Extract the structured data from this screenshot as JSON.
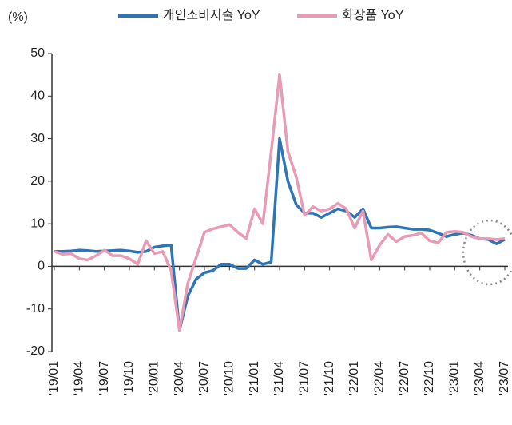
{
  "chart_data": {
    "type": "line",
    "y_unit": "(%)",
    "categories": [
      "'19/01",
      null,
      null,
      "'19/04",
      null,
      null,
      "'19/07",
      null,
      null,
      "'19/10",
      null,
      null,
      "'20/01",
      null,
      null,
      "'20/04",
      null,
      null,
      "'20/07",
      null,
      null,
      "'20/10",
      null,
      null,
      "'21/01",
      null,
      null,
      "'21/04",
      null,
      null,
      "'21/07",
      null,
      null,
      "'21/10",
      null,
      null,
      "'22/01",
      null,
      null,
      "'22/04",
      null,
      null,
      "'22/07",
      null,
      null,
      "'22/10",
      null,
      null,
      "'23/01",
      null,
      null,
      "'23/04",
      null,
      null,
      "'23/07"
    ],
    "series": [
      {
        "name": "개인소비지출 YoY",
        "color": "#2e75b6",
        "values": [
          3.5,
          3.5,
          3.6,
          3.8,
          3.7,
          3.5,
          3.6,
          3.7,
          3.8,
          3.6,
          3.3,
          3.5,
          4.5,
          4.8,
          5.0,
          -15,
          -7,
          -3,
          -1.5,
          -1,
          0.5,
          0.5,
          -0.5,
          -0.5,
          1.5,
          0.5,
          1,
          30,
          20,
          14.5,
          12.5,
          12.5,
          11.5,
          12.5,
          13.5,
          13,
          11.5,
          13.5,
          9,
          9,
          9.2,
          9.3,
          9,
          8.7,
          8.7,
          8.5,
          7.8,
          7,
          7.5,
          7.8,
          7.3,
          6.5,
          6.3,
          5.3,
          6.3
        ]
      },
      {
        "name": "화장품 YoY",
        "color": "#e89bb5",
        "values": [
          3.5,
          2.8,
          3,
          1.8,
          1.5,
          2.5,
          3.8,
          2.5,
          2.5,
          1.8,
          0.5,
          6,
          3,
          3.5,
          -1,
          -15,
          -4,
          2,
          8,
          8.8,
          9.3,
          9.8,
          8,
          6.5,
          13.5,
          10,
          27,
          45,
          27,
          21,
          12,
          14,
          13,
          13.5,
          14.8,
          13.5,
          9,
          13,
          1.5,
          5,
          7.5,
          5.8,
          7,
          7.3,
          7.8,
          6,
          5.5,
          8,
          8.2,
          8,
          7,
          6.5,
          6.5,
          6.3,
          6.5
        ]
      }
    ],
    "ylim": [
      -20,
      50
    ],
    "yticks": [
      -20,
      -10,
      0,
      10,
      20,
      30,
      40,
      50
    ]
  }
}
